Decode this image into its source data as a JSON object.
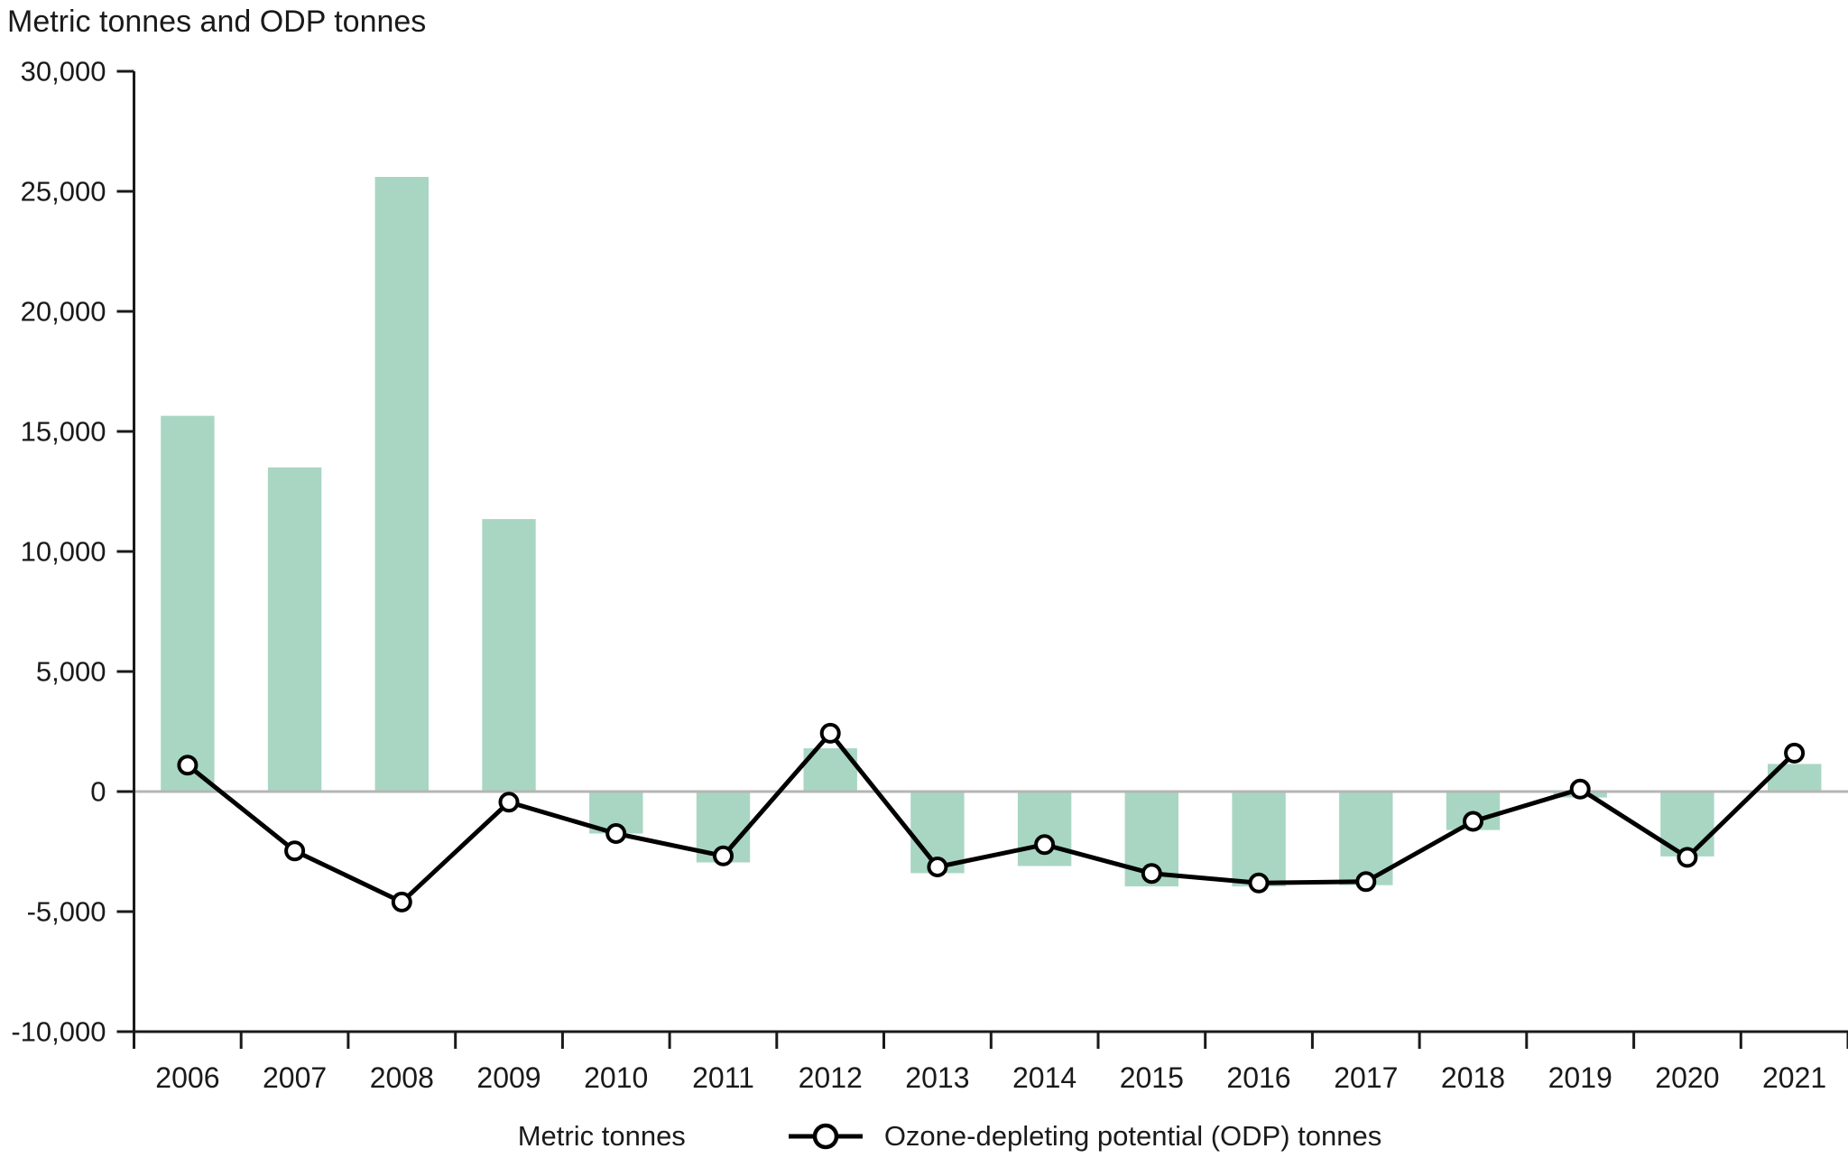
{
  "title": "Metric tonnes and ODP tonnes",
  "colors": {
    "bar": "#a8d6c3",
    "line": "#000000",
    "marker_fill": "#ffffff",
    "zero_line": "#b5b5b5",
    "axis": "#1a1a1a",
    "text": "#1a1a1a"
  },
  "legend": {
    "items": [
      {
        "label": "Metric tonnes"
      },
      {
        "label": "Ozone-depleting potential (ODP) tonnes"
      }
    ]
  },
  "chart_data": {
    "type": "bar+line",
    "title": "Metric tonnes and ODP tonnes",
    "xlabel": "",
    "ylabel": "Metric tonnes and ODP tonnes",
    "categories": [
      "2006",
      "2007",
      "2008",
      "2009",
      "2010",
      "2011",
      "2012",
      "2013",
      "2014",
      "2015",
      "2016",
      "2017",
      "2018",
      "2019",
      "2020",
      "2021"
    ],
    "series": [
      {
        "name": "Metric tonnes",
        "type": "bar",
        "values": [
          15650,
          13500,
          25600,
          11350,
          -1750,
          -2950,
          1800,
          -3400,
          -3100,
          -3950,
          -3950,
          -3900,
          -1600,
          -250,
          -2700,
          1150
        ]
      },
      {
        "name": "Ozone-depleting potential (ODP) tonnes",
        "type": "line",
        "values": [
          1100,
          -2470,
          -4600,
          -440,
          -1750,
          -2680,
          2430,
          -3140,
          -2210,
          -3410,
          -3810,
          -3750,
          -1240,
          100,
          -2740,
          1600
        ]
      }
    ],
    "ylim": [
      -10000,
      30000
    ],
    "ytick_step": 5000,
    "ytick_labels": [
      "30,000",
      "25,000",
      "20,000",
      "15,000",
      "10,000",
      "5,000",
      "0",
      "-5,000",
      "-10,000"
    ],
    "grid": false,
    "zero_line": true,
    "legend_position": "bottom"
  }
}
